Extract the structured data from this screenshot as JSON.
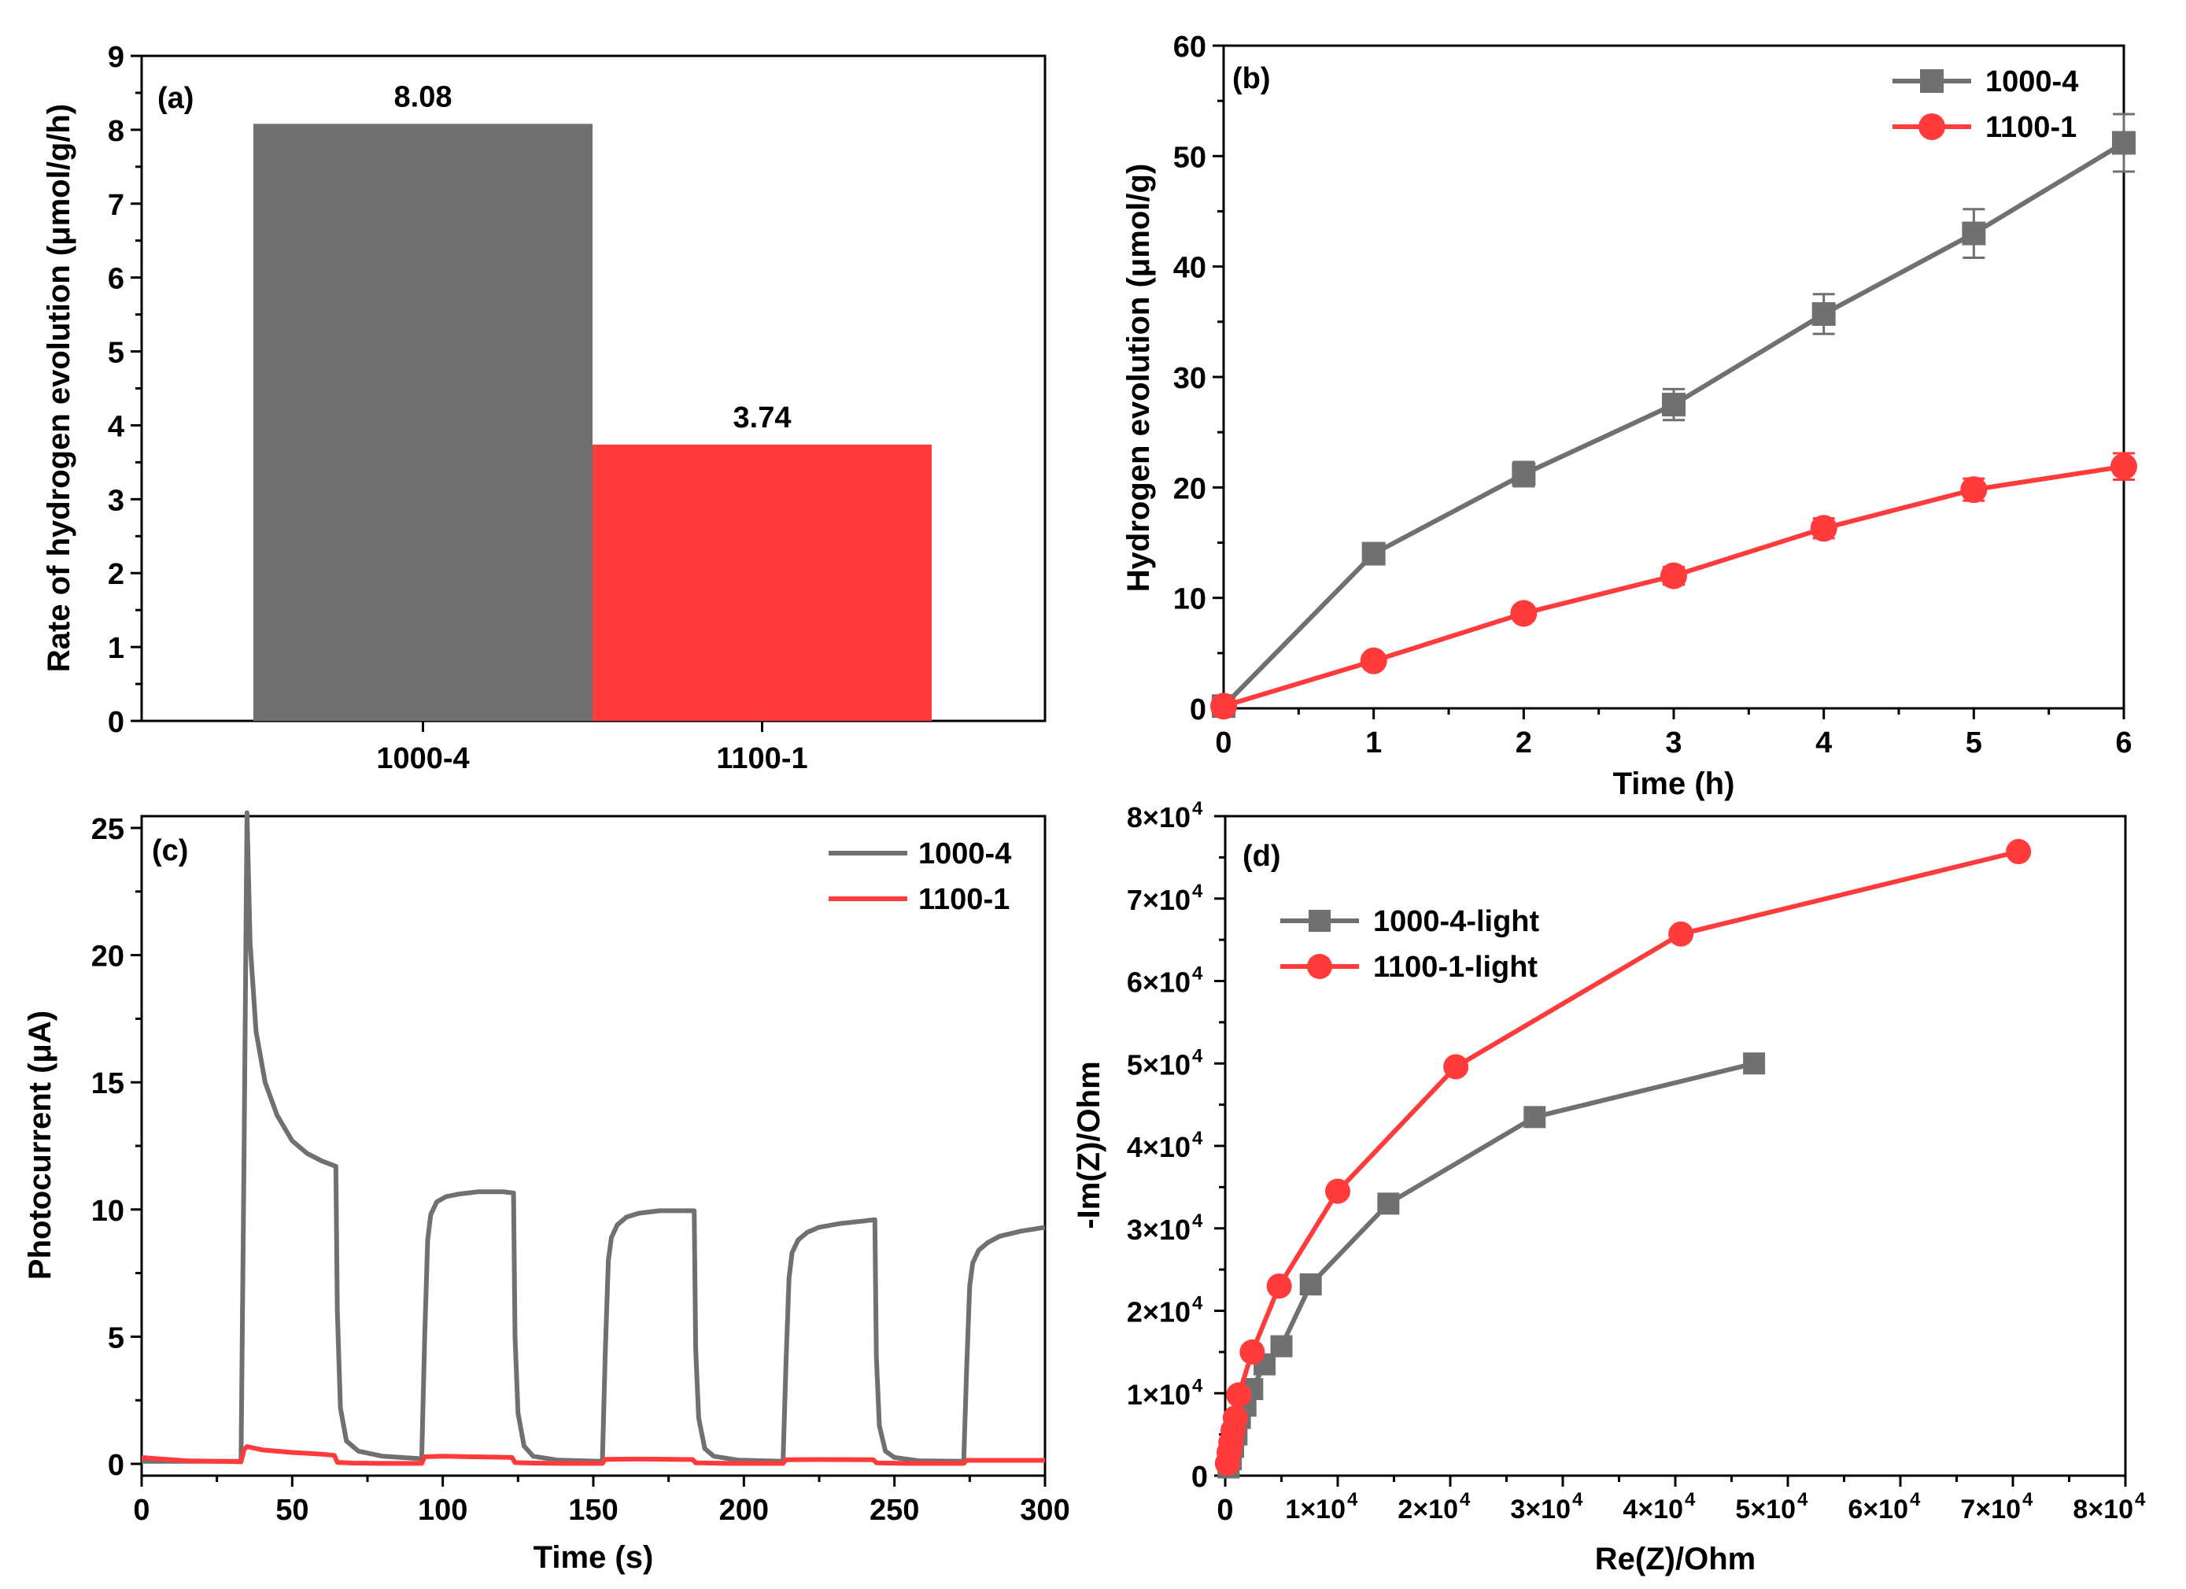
{
  "colors": {
    "gray": "#707070",
    "red": "#ff3b3b",
    "axis": "#000000"
  },
  "chart_data": [
    {
      "id": "a",
      "type": "bar",
      "panel_label": "(a)",
      "categories": [
        "1000-4",
        "1100-1"
      ],
      "values": [
        8.08,
        3.74
      ],
      "data_labels": [
        "8.08",
        "3.74"
      ],
      "colors": [
        "#707070",
        "#ff3b3b"
      ],
      "xlabel": "",
      "ylabel": "Rate of hydrogen evolution (μmol/g/h)",
      "ylim": [
        0,
        9
      ],
      "yticks": [
        0,
        1,
        2,
        3,
        4,
        5,
        6,
        7,
        8,
        9
      ],
      "ytick_labels": [
        "0",
        "1",
        "2",
        "3",
        "4",
        "5",
        "6",
        "7",
        "8",
        "9"
      ]
    },
    {
      "id": "b",
      "type": "line",
      "panel_label": "(b)",
      "xlabel": "Time (h)",
      "ylabel": "Hydrogen evolution (μmol/g)",
      "xlim": [
        0,
        6
      ],
      "ylim": [
        0,
        60
      ],
      "xticks": [
        0,
        1,
        2,
        3,
        4,
        5,
        6
      ],
      "xtick_labels": [
        "0",
        "1",
        "2",
        "3",
        "4",
        "5",
        "6"
      ],
      "yticks": [
        0,
        10,
        20,
        30,
        40,
        50,
        60
      ],
      "ytick_labels": [
        "0",
        "10",
        "20",
        "30",
        "40",
        "50",
        "60"
      ],
      "legend": "top-right",
      "series": [
        {
          "name": "1000-4",
          "color": "#707070",
          "marker": "square",
          "x": [
            0,
            1,
            2,
            3,
            4,
            5,
            6
          ],
          "y": [
            0.2,
            14.0,
            21.2,
            27.5,
            35.7,
            43.0,
            51.2
          ],
          "err": [
            0,
            0.9,
            1.1,
            1.4,
            1.8,
            2.2,
            2.6
          ]
        },
        {
          "name": "1100-1",
          "color": "#ff3b3b",
          "marker": "circle",
          "x": [
            0,
            1,
            2,
            3,
            4,
            5,
            6
          ],
          "y": [
            0.2,
            4.3,
            8.6,
            12.0,
            16.3,
            19.8,
            21.9
          ],
          "err": [
            0,
            0.5,
            0.6,
            0.8,
            0.9,
            1.0,
            1.2
          ]
        }
      ]
    },
    {
      "id": "c",
      "type": "line",
      "panel_label": "(c)",
      "xlabel": "Time (s)",
      "ylabel": "Photocurrent (μA)",
      "xlim": [
        0,
        300
      ],
      "ylim": [
        0,
        26
      ],
      "xticks": [
        0,
        50,
        100,
        150,
        200,
        250,
        300
      ],
      "xtick_labels": [
        "0",
        "50",
        "100",
        "150",
        "200",
        "250",
        "300"
      ],
      "yticks": [
        0,
        5,
        10,
        15,
        20,
        25
      ],
      "ytick_labels": [
        "0",
        "5",
        "10",
        "15",
        "20",
        "25"
      ],
      "legend": "top-right",
      "series": [
        {
          "name": "1000-4",
          "color": "#707070",
          "x": [
            0,
            33,
            34,
            35,
            36,
            38,
            41,
            45,
            50,
            55,
            60,
            64.5,
            65,
            66,
            68,
            72,
            80,
            93,
            94,
            95,
            96,
            98,
            101,
            105,
            112,
            120,
            123.5,
            124,
            125,
            127,
            130,
            138,
            153,
            154,
            155,
            156,
            158,
            161,
            165,
            172,
            180,
            183.5,
            184,
            185,
            187,
            190,
            198,
            213,
            214,
            215,
            216,
            218,
            221,
            225,
            232,
            240,
            243.5,
            244,
            245,
            247,
            250,
            258,
            273,
            274,
            275,
            276,
            278,
            281,
            285,
            292,
            300
          ],
          "y": [
            0.1,
            0.1,
            12.0,
            25.6,
            20.5,
            17.0,
            15.0,
            13.7,
            12.7,
            12.2,
            11.9,
            11.7,
            6.0,
            2.2,
            0.9,
            0.5,
            0.3,
            0.2,
            5.0,
            8.8,
            9.8,
            10.3,
            10.5,
            10.6,
            10.7,
            10.7,
            10.65,
            5.0,
            2.0,
            0.7,
            0.3,
            0.15,
            0.1,
            4.5,
            8.0,
            8.9,
            9.4,
            9.7,
            9.85,
            9.95,
            9.95,
            9.95,
            4.5,
            1.8,
            0.6,
            0.3,
            0.15,
            0.1,
            4.0,
            7.3,
            8.3,
            8.8,
            9.1,
            9.3,
            9.45,
            9.55,
            9.6,
            4.2,
            1.5,
            0.5,
            0.25,
            0.12,
            0.1,
            3.8,
            7.0,
            7.9,
            8.4,
            8.7,
            8.95,
            9.15,
            9.3
          ]
        },
        {
          "name": "1100-1",
          "color": "#ff3b3b",
          "x": [
            0,
            3,
            8,
            15,
            25,
            33,
            34,
            35,
            40,
            50,
            60,
            64,
            65,
            70,
            80,
            93,
            94,
            100,
            110,
            120,
            123,
            124,
            130,
            140,
            153,
            154,
            165,
            183,
            184,
            195,
            213,
            214,
            225,
            243,
            244,
            255,
            273,
            274,
            285,
            300
          ],
          "y": [
            0.25,
            0.22,
            0.18,
            0.12,
            0.1,
            0.08,
            0.55,
            0.68,
            0.55,
            0.45,
            0.38,
            0.33,
            0.06,
            0.03,
            0.02,
            0.02,
            0.28,
            0.3,
            0.28,
            0.26,
            0.25,
            0.05,
            0.03,
            0.02,
            0.02,
            0.18,
            0.19,
            0.17,
            0.04,
            0.02,
            0.02,
            0.16,
            0.17,
            0.16,
            0.04,
            0.02,
            0.02,
            0.14,
            0.14,
            0.14
          ]
        }
      ]
    },
    {
      "id": "d",
      "type": "line",
      "panel_label": "(d)",
      "xlabel": "Re(Z)/Ohm",
      "ylabel": "-Im(Z)/Ohm",
      "xlim": [
        0,
        80000
      ],
      "ylim": [
        0,
        80000
      ],
      "xticks": [
        0,
        10000,
        20000,
        30000,
        40000,
        50000,
        60000,
        70000,
        80000
      ],
      "xtick_labels": [
        "0",
        "1×10",
        "2×10",
        "3×10",
        "4×10",
        "5×10",
        "6×10",
        "7×10",
        "8×10"
      ],
      "yticks": [
        0,
        10000,
        20000,
        30000,
        40000,
        50000,
        60000,
        70000,
        80000
      ],
      "ytick_labels": [
        "0",
        "1×10",
        "2×10",
        "3×10",
        "4×10",
        "5×10",
        "6×10",
        "7×10",
        "8×10"
      ],
      "tick_exponent": "4",
      "legend": "top-left",
      "series": [
        {
          "name": "1000-4-light",
          "color": "#707070",
          "marker": "square",
          "x": [
            300,
            500,
            700,
            1000,
            1300,
            1800,
            2400,
            3500,
            5000,
            7600,
            14500,
            27500,
            47000
          ],
          "y": [
            1000,
            2000,
            3500,
            5000,
            7000,
            8500,
            10500,
            13500,
            15700,
            23200,
            33000,
            43500,
            50000
          ]
        },
        {
          "name": "1100-1-light",
          "color": "#ff3b3b",
          "marker": "circle",
          "x": [
            200,
            350,
            500,
            700,
            900,
            1200,
            2400,
            4800,
            10000,
            20500,
            40500,
            70500
          ],
          "y": [
            1500,
            2800,
            4000,
            5500,
            7000,
            9800,
            15000,
            23000,
            34500,
            49600,
            65700,
            75700
          ]
        }
      ]
    }
  ]
}
